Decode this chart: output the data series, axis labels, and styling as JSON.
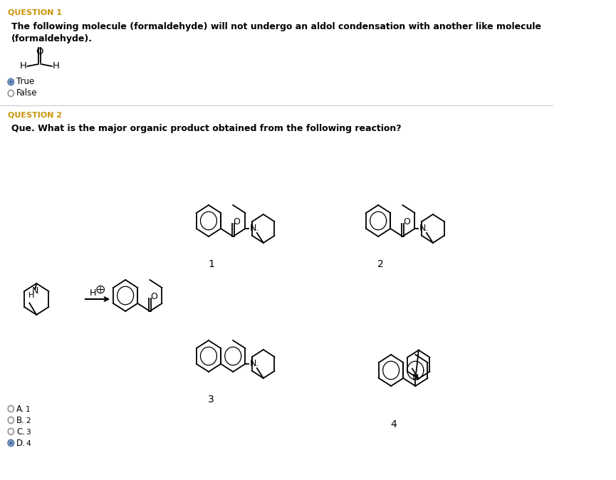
{
  "bg_color": "#ffffff",
  "q1_label": "QUESTION 1",
  "q1_label_color": "#c8940a",
  "q1_text_line1": "The following molecule (formaldehyde) will not undergo an aldol condensation with another like molecule",
  "q1_text_line2": "(formaldehyde).",
  "q2_label": "QUESTION 2",
  "q2_label_color": "#c8940a",
  "q2_text": "Que. What is the major organic product obtained from the following reaction?",
  "true_label": "True",
  "false_label": "False",
  "answer_options": [
    "A.",
    "B.",
    "C.",
    "D."
  ],
  "answer_nums": [
    "1",
    "2",
    "3",
    "4"
  ],
  "answer_selected": 3,
  "text_color": "#000000",
  "radio_filled_color": "#4a6fa5",
  "radio_empty_color": "#999999",
  "divider_color": "#cccccc",
  "lw": 1.3
}
